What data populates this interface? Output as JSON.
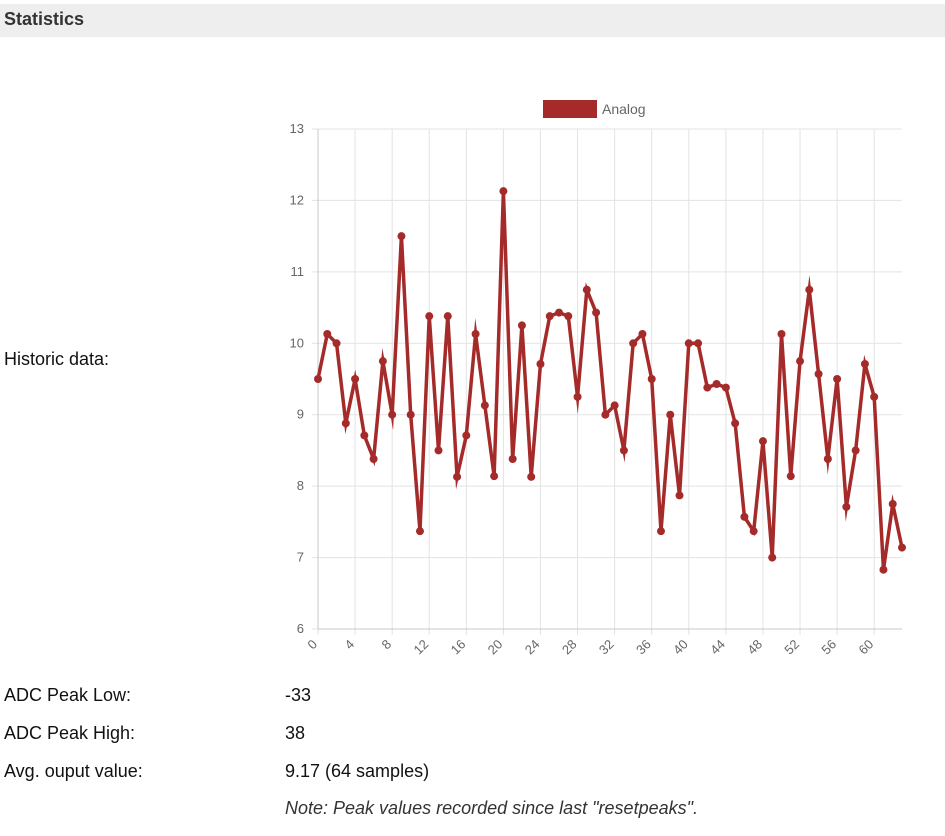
{
  "header": {
    "title": "Statistics"
  },
  "rows": {
    "historic_label": "Historic data:",
    "adc_low_label": "ADC Peak Low:",
    "adc_low_value": "-33",
    "adc_high_label": "ADC Peak High:",
    "adc_high_value": "38",
    "avg_label": "Avg. ouput value:",
    "avg_value": "9.17 (64 samples)",
    "note": "Note: Peak values recorded since last \"resetpeaks\"."
  },
  "chart_data": {
    "type": "line",
    "title": "",
    "xlabel": "",
    "ylabel": "",
    "ylim": [
      6,
      13
    ],
    "yticks": [
      6,
      7,
      8,
      9,
      10,
      11,
      12,
      13
    ],
    "xtick_labels": [
      "0",
      "4",
      "8",
      "12",
      "16",
      "20",
      "24",
      "28",
      "32",
      "36",
      "40",
      "44",
      "48",
      "52",
      "56",
      "60"
    ],
    "grid": true,
    "legend_position": "top",
    "series_color": "#a52a2a",
    "series": [
      {
        "name": "Analog",
        "x": [
          0,
          1,
          2,
          3,
          4,
          5,
          6,
          7,
          8,
          9,
          10,
          11,
          12,
          13,
          14,
          15,
          16,
          17,
          18,
          19,
          20,
          21,
          22,
          23,
          24,
          25,
          26,
          27,
          28,
          29,
          30,
          31,
          32,
          33,
          34,
          35,
          36,
          37,
          38,
          39,
          40,
          41,
          42,
          43,
          44,
          45,
          46,
          47,
          48,
          49,
          50,
          51,
          52,
          53,
          54,
          55,
          56,
          57,
          58,
          59,
          60,
          61,
          62,
          63
        ],
        "values": [
          9.5,
          10.13,
          10.0,
          8.88,
          9.5,
          8.71,
          8.38,
          9.75,
          9.0,
          11.5,
          9.0,
          7.37,
          10.38,
          8.5,
          10.38,
          8.13,
          8.71,
          10.13,
          9.13,
          8.14,
          12.13,
          8.38,
          10.25,
          8.13,
          9.71,
          10.38,
          10.43,
          10.38,
          9.25,
          10.75,
          10.43,
          9.0,
          9.13,
          8.5,
          10.0,
          10.13,
          9.5,
          7.37,
          9.0,
          7.87,
          10.0,
          10.0,
          9.38,
          9.43,
          9.38,
          8.88,
          7.57,
          7.37,
          8.63,
          7.0,
          10.13,
          8.14,
          9.75,
          10.75,
          9.57,
          8.38,
          9.5,
          7.71,
          8.5,
          9.71,
          9.25,
          6.83,
          7.75,
          7.14
        ]
      }
    ]
  }
}
